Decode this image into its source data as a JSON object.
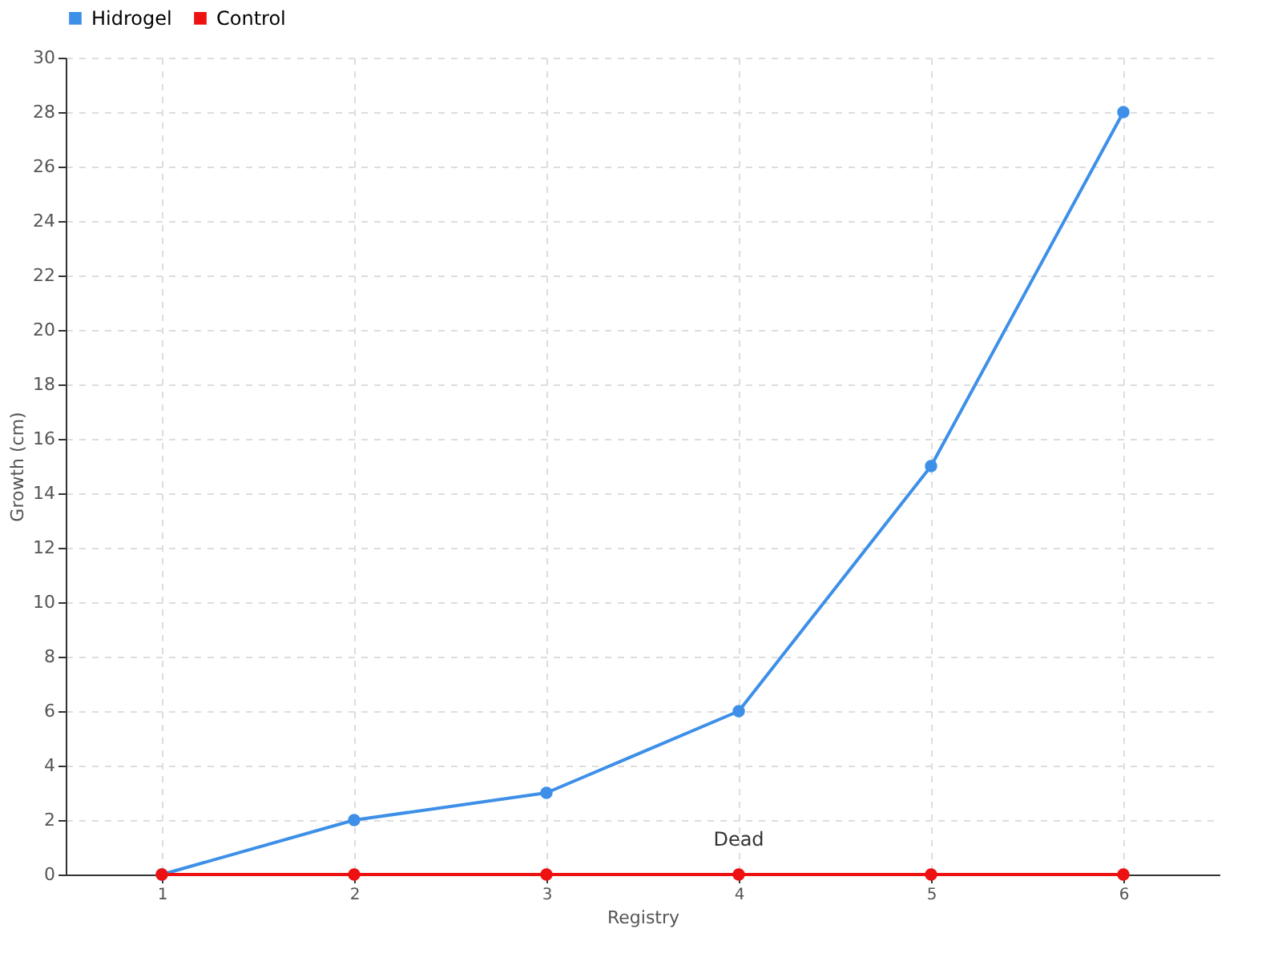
{
  "chart_data": {
    "type": "line",
    "xlabel": "Registry",
    "ylabel": "Growth (cm)",
    "categories": [
      "1",
      "2",
      "3",
      "4",
      "5",
      "6"
    ],
    "series": [
      {
        "name": "Hidrogel",
        "color": "#3d8fe8",
        "values": [
          0,
          2,
          3,
          6,
          15,
          28
        ]
      },
      {
        "name": "Control",
        "color": "#ee1111",
        "values": [
          0,
          0,
          0,
          0,
          0,
          0
        ]
      }
    ],
    "ylim": [
      0,
      30
    ],
    "yticks": [
      0,
      2,
      4,
      6,
      8,
      10,
      12,
      14,
      16,
      18,
      20,
      22,
      24,
      26,
      28,
      30
    ],
    "annotations": [
      {
        "text": "Dead",
        "x": "4",
        "y": 0
      }
    ],
    "grid": true,
    "legend": "top left",
    "marker": "circle",
    "line_style": "solid"
  }
}
